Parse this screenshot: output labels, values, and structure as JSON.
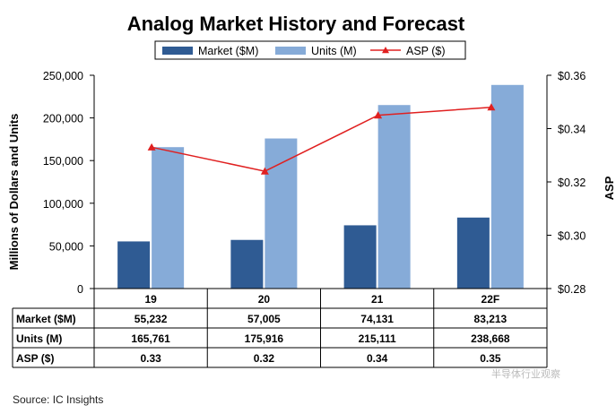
{
  "chart_data": {
    "type": "bar",
    "title": "Analog Market History and Forecast",
    "categories": [
      "19",
      "20",
      "21",
      "22F"
    ],
    "series": [
      {
        "name": "Market ($M)",
        "type": "bar",
        "axis": "left",
        "color": "#2f5b93",
        "values": [
          55232,
          57005,
          74131,
          83213
        ],
        "table_values": [
          "55,232",
          "57,005",
          "74,131",
          "83,213"
        ]
      },
      {
        "name": "Units (M)",
        "type": "bar",
        "axis": "left",
        "color": "#86abd8",
        "values": [
          165761,
          175916,
          215111,
          238668
        ],
        "table_values": [
          "165,761",
          "175,916",
          "215,111",
          "238,668"
        ]
      },
      {
        "name": "ASP ($)",
        "type": "line",
        "axis": "right",
        "color": "#e02020",
        "marker": "triangle",
        "values": [
          0.333,
          0.324,
          0.345,
          0.348
        ],
        "table_values": [
          "0.33",
          "0.32",
          "0.34",
          "0.35"
        ]
      }
    ],
    "ylabel": "Millions of Dollars and Units",
    "ylim": [
      0,
      250000
    ],
    "yticks": [
      "0",
      "50,000",
      "100,000",
      "150,000",
      "200,000",
      "250,000"
    ],
    "y2label": "ASP",
    "y2lim": [
      0.28,
      0.36
    ],
    "y2ticks": [
      "$0.28",
      "$0.30",
      "$0.32",
      "$0.34",
      "$0.36"
    ],
    "legend": "top",
    "grid": false
  },
  "source": "Source:  IC Insights",
  "watermark": "半导体行业观察"
}
